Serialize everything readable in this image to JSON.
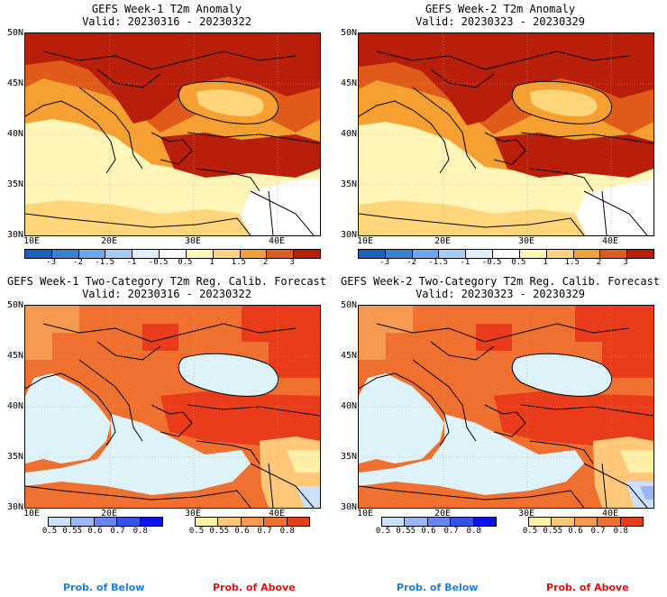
{
  "panels": [
    {
      "title": "GEFS Week-1 T2m Anomaly",
      "valid": "Valid: 20230316 - 20230322"
    },
    {
      "title": "GEFS Week-2 T2m Anomaly",
      "valid": "Valid: 20230323 - 20230329"
    },
    {
      "title": "GEFS Week-1 Two-Category T2m Reg. Calib. Forecast",
      "valid": "Valid: 20230316 - 20230322"
    },
    {
      "title": "GEFS Week-2 Two-Category T2m Reg. Calib. Forecast",
      "valid": "Valid: 20230323 - 20230329"
    }
  ],
  "lat_labels": [
    "50N",
    "45N",
    "40N",
    "35N",
    "30N"
  ],
  "lon_labels": [
    "10E",
    "20E",
    "30E",
    "40E"
  ],
  "anomaly_colorbar": {
    "ticks": [
      "-3",
      "-2",
      "-1.5",
      "-1",
      "-0.5",
      "0.5",
      "1",
      "1.5",
      "2",
      "3"
    ],
    "colors": [
      "#1f5fbf",
      "#3f7fd8",
      "#6fa7e8",
      "#a9cdf2",
      "#dff0fb",
      "#ffffff",
      "#fff6b8",
      "#ffd67a",
      "#f5a030",
      "#e05a1a",
      "#b81e0a"
    ]
  },
  "below_colorbar": {
    "ticks": [
      "0.5",
      "0.55",
      "0.6",
      "0.7",
      "0.8"
    ],
    "colors": [
      "#cce0ff",
      "#99b8f5",
      "#6688ee",
      "#3355ee",
      "#0a14e6"
    ]
  },
  "above_colorbar": {
    "ticks": [
      "0.5",
      "0.55",
      "0.6",
      "0.7",
      "0.8"
    ],
    "colors": [
      "#fff0a8",
      "#ffc878",
      "#f59a50",
      "#f07030",
      "#ea3c1a"
    ]
  },
  "legend": {
    "below": "Prob. of Below",
    "above": "Prob. of Above"
  },
  "colors": {
    "below_label": "#1a7fe0",
    "above_label": "#e01010",
    "sea_prob": "#dff4fa",
    "graticule": "#c8a060"
  }
}
